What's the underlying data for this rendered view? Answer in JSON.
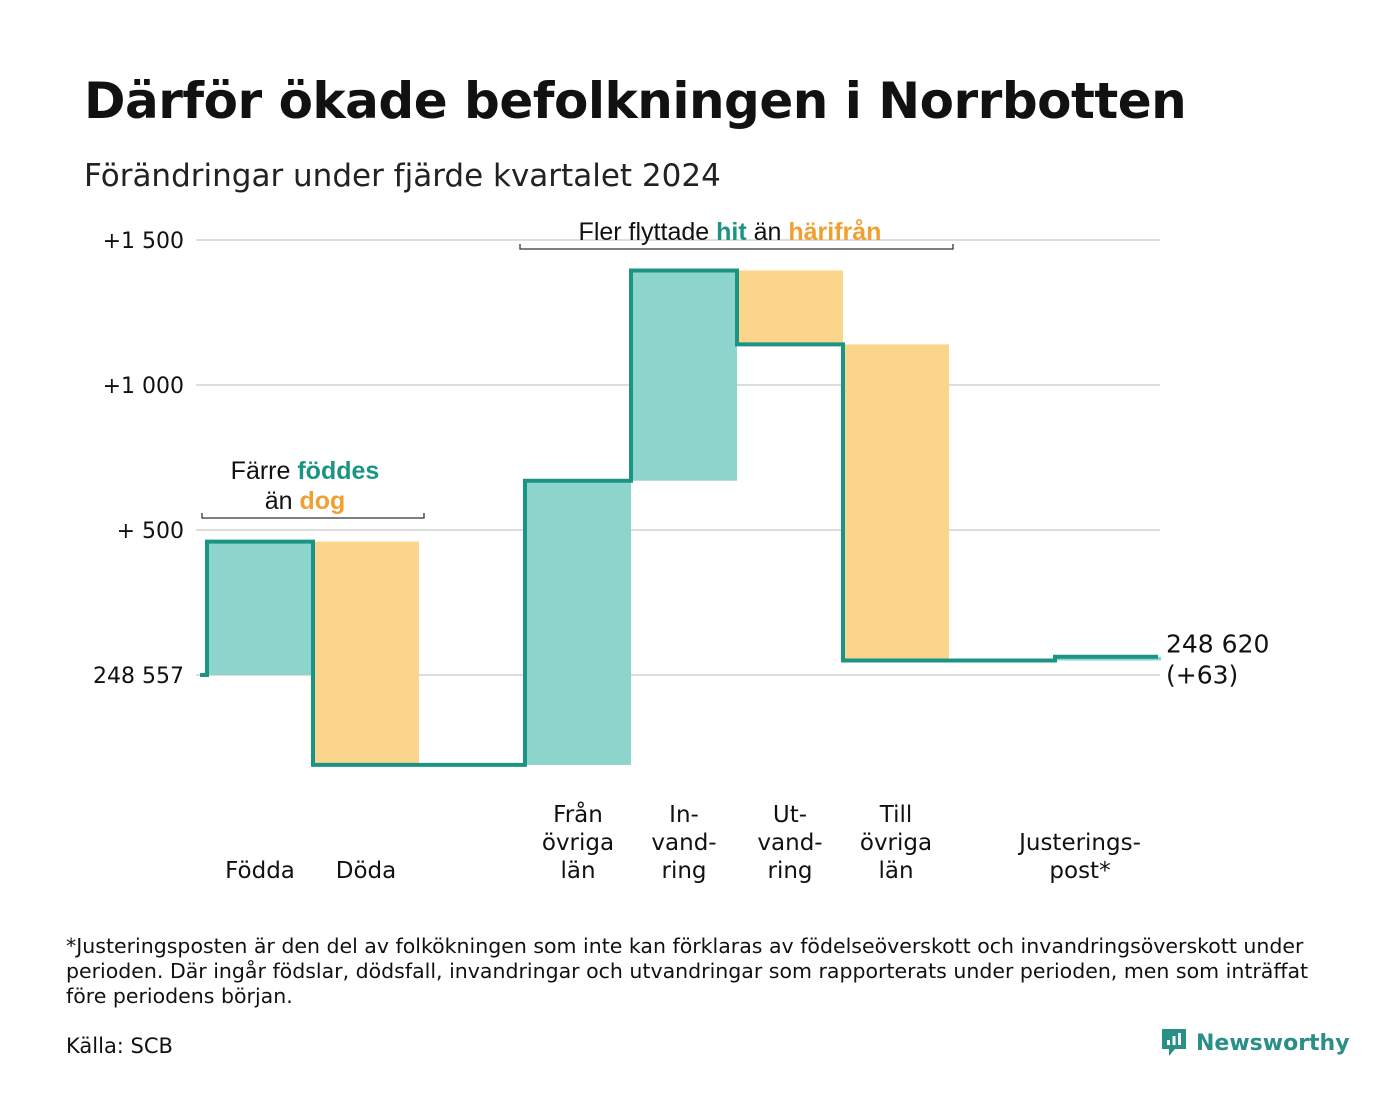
{
  "title": "Därför ökade befolkningen i Norrbotten",
  "subtitle": "Förändringar under fjärde kvartalet 2024",
  "footnote": "*Justeringsposten är den del av folkökningen som inte kan förklaras av födelseöverskott och invandringsöverskott under perioden. Där ingår födslar, dödsfall, invandringar och utvandringar som rapporterats under perioden, men som inträffat före periodens början.",
  "source": "Källa: SCB",
  "brand": "Newsworthy",
  "colors": {
    "positive": "#8dd4cc",
    "negative": "#fad58b",
    "line": "#1a9585",
    "grid": "#dddddd"
  },
  "chart_data": {
    "type": "waterfall",
    "start_value": 248557,
    "end_label": [
      "248 620",
      "(+63)"
    ],
    "y_ticks": [
      {
        "value": 1500,
        "label": "+1 500"
      },
      {
        "value": 1000,
        "label": "+1 000"
      },
      {
        "value": 500,
        "label": "+  500"
      },
      {
        "value": 0,
        "label": "248 557"
      }
    ],
    "ylim": [
      -315,
      1610
    ],
    "steps": [
      {
        "label": [
          "Födda"
        ],
        "change": 460
      },
      {
        "label": [
          "Döda"
        ],
        "change": -770
      },
      {
        "label": [
          "Från",
          "övriga",
          "län"
        ],
        "change": 980
      },
      {
        "label": [
          "In-",
          "vand-",
          "ring"
        ],
        "change": 725
      },
      {
        "label": [
          "Ut-",
          "vand-",
          "ring"
        ],
        "change": -255
      },
      {
        "label": [
          "Till",
          "övriga",
          "län"
        ],
        "change": -1090
      },
      {
        "label": [
          "Justerings-",
          "post*"
        ],
        "change": 13
      }
    ],
    "annotations": [
      {
        "lines": [
          [
            {
              "t": "Färre ",
              "k": "plain"
            },
            {
              "t": "föddes",
              "k": "pos"
            }
          ],
          [
            {
              "t": "än ",
              "k": "plain"
            },
            {
              "t": "dog",
              "k": "neg"
            }
          ]
        ]
      },
      {
        "lines": [
          [
            {
              "t": "Fler flyttade ",
              "k": "plain"
            },
            {
              "t": "hit",
              "k": "pos"
            },
            {
              "t": "  än ",
              "k": "plain"
            },
            {
              "t": "härifrån",
              "k": "neg"
            }
          ]
        ]
      }
    ]
  }
}
